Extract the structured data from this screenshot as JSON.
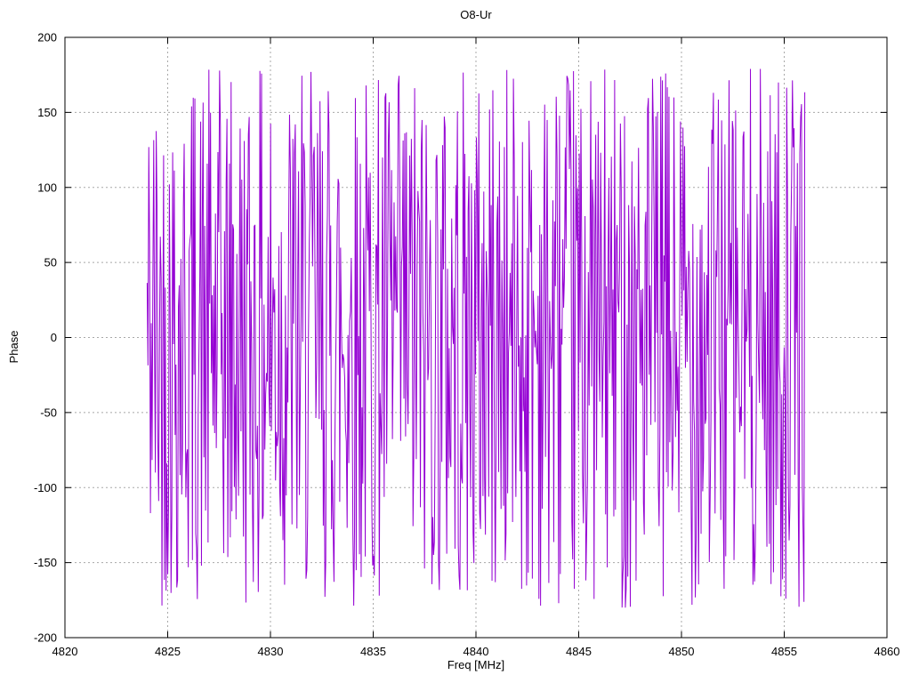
{
  "chart_data": {
    "type": "line",
    "title": "O8-Ur",
    "xlabel": "Freq [MHz]",
    "ylabel": "Phase",
    "xlim": [
      4820,
      4860
    ],
    "ylim": [
      -200,
      200
    ],
    "x_ticks": [
      4820,
      4825,
      4830,
      4835,
      4840,
      4845,
      4850,
      4855,
      4860
    ],
    "y_ticks": [
      -200,
      -150,
      -100,
      -50,
      0,
      50,
      100,
      150,
      200
    ],
    "grid": true,
    "legend": "none",
    "line_color": "#9400d3",
    "grid_color": "#a8a8a8",
    "axis_color": "#000000",
    "background": "#ffffff",
    "series": [
      {
        "name": "phase",
        "x_start": 4824.0,
        "x_end": 4856.0,
        "n_points": 800,
        "y_min": -180,
        "y_max": 180,
        "distribution": "uniform-random-wrapped-phase",
        "seed": 42
      }
    ]
  }
}
